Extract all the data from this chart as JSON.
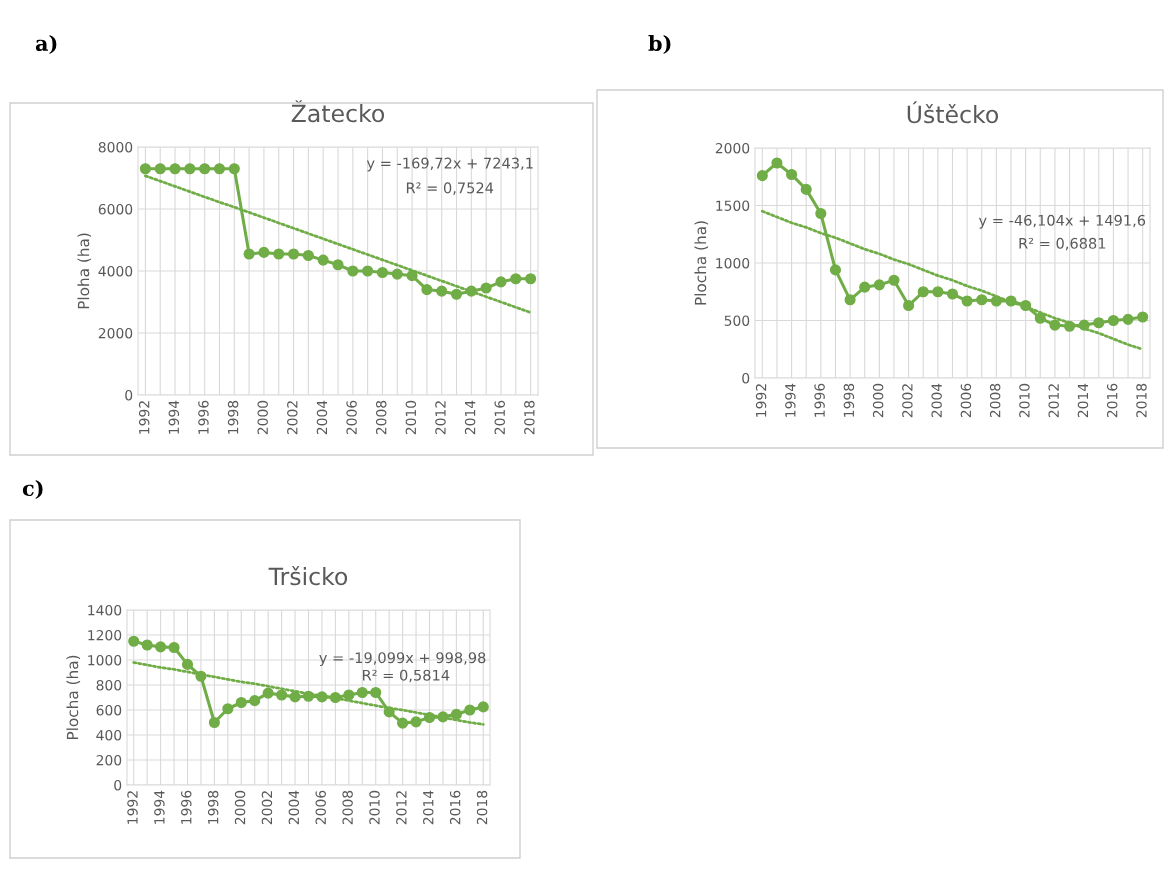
{
  "chart_data": [
    {
      "type": "line",
      "title": "Žatecko",
      "ylabel": "Ploha (ha)",
      "categories": [
        "1992",
        null,
        "1994",
        null,
        "1996",
        null,
        "1998",
        null,
        "2000",
        null,
        "2002",
        null,
        "2004",
        null,
        "2006",
        null,
        "2008",
        null,
        "2010",
        null,
        "2012",
        null,
        "2014",
        null,
        "2016",
        null,
        "2018"
      ],
      "series": [
        {
          "color": "#70ad47",
          "marker": "circle",
          "line_style": "solid",
          "values": [
            7300,
            7300,
            7300,
            7300,
            7300,
            7300,
            7300,
            4550,
            4600,
            4550,
            4550,
            4500,
            4350,
            4200,
            4000,
            4000,
            3950,
            3900,
            3850,
            3400,
            3350,
            3250,
            3350,
            3450,
            3650,
            3750,
            3750
          ]
        },
        {
          "color": "#70ad47",
          "marker": "none",
          "line_style": "dotted",
          "values": [
            7070,
            6900,
            6730,
            6560,
            6390,
            6220,
            6060,
            5890,
            5720,
            5550,
            5380,
            5210,
            5040,
            4870,
            4700,
            4530,
            4360,
            4190,
            4020,
            3850,
            3680,
            3510,
            3340,
            3170,
            3000,
            2830,
            2660
          ]
        }
      ],
      "ylim": [
        0,
        8000
      ],
      "yticks": [
        0,
        2000,
        4000,
        6000,
        8000
      ],
      "grid": true,
      "annotations": [
        "a)",
        "y = -169,72x + 7243,1",
        "R² = 0,7524"
      ]
    },
    {
      "type": "line",
      "title": "Úštěcko",
      "ylabel": "Plocha (ha)",
      "categories": [
        "1992",
        null,
        "1994",
        null,
        "1996",
        null,
        "1998",
        null,
        "2000",
        null,
        "2002",
        null,
        "2004",
        null,
        "2006",
        null,
        "2008",
        null,
        "2010",
        null,
        "2012",
        null,
        "2014",
        null,
        "2016",
        null,
        "2018"
      ],
      "series": [
        {
          "color": "#70ad47",
          "marker": "circle",
          "line_style": "solid",
          "values": [
            1760,
            1870,
            1770,
            1640,
            1430,
            940,
            680,
            790,
            810,
            850,
            630,
            750,
            750,
            730,
            670,
            680,
            670,
            670,
            630,
            520,
            460,
            450,
            460,
            480,
            500,
            510,
            530
          ]
        },
        {
          "color": "#70ad47",
          "marker": "none",
          "line_style": "dotted",
          "values": [
            1450,
            1400,
            1350,
            1310,
            1260,
            1220,
            1170,
            1120,
            1080,
            1030,
            990,
            940,
            890,
            850,
            800,
            760,
            710,
            660,
            620,
            570,
            520,
            480,
            430,
            390,
            340,
            290,
            250
          ]
        }
      ],
      "ylim": [
        0,
        2000
      ],
      "yticks": [
        0,
        500,
        1000,
        1500,
        2000
      ],
      "grid": true,
      "annotations": [
        "b)",
        "y = -46,104x + 1491,6",
        "R² = 0,6881"
      ]
    },
    {
      "type": "line",
      "title": "Tršicko",
      "ylabel": "Plocha (ha)",
      "categories": [
        "1992",
        null,
        "1994",
        null,
        "1996",
        null,
        "1998",
        null,
        "2000",
        null,
        "2002",
        null,
        "2004",
        null,
        "2006",
        null,
        "2008",
        null,
        "2010",
        null,
        "2012",
        null,
        "2014",
        null,
        "2016",
        null,
        "2018"
      ],
      "series": [
        {
          "color": "#70ad47",
          "marker": "circle",
          "line_style": "solid",
          "values": [
            1150,
            1120,
            1105,
            1100,
            965,
            870,
            500,
            610,
            660,
            675,
            735,
            720,
            705,
            710,
            705,
            700,
            720,
            740,
            740,
            585,
            495,
            505,
            540,
            545,
            565,
            600,
            625
          ]
        },
        {
          "color": "#70ad47",
          "marker": "none",
          "line_style": "dotted",
          "values": [
            980,
            960,
            940,
            925,
            905,
            885,
            865,
            845,
            825,
            810,
            790,
            770,
            750,
            730,
            715,
            695,
            675,
            655,
            635,
            615,
            600,
            580,
            560,
            540,
            520,
            500,
            485
          ]
        }
      ],
      "ylim": [
        0,
        1400
      ],
      "yticks": [
        0,
        200,
        400,
        600,
        800,
        1000,
        1200,
        1400
      ],
      "grid": true,
      "annotations": [
        "c)",
        "y = -19,099x + 998,98",
        "R² = 0,5814"
      ]
    }
  ]
}
